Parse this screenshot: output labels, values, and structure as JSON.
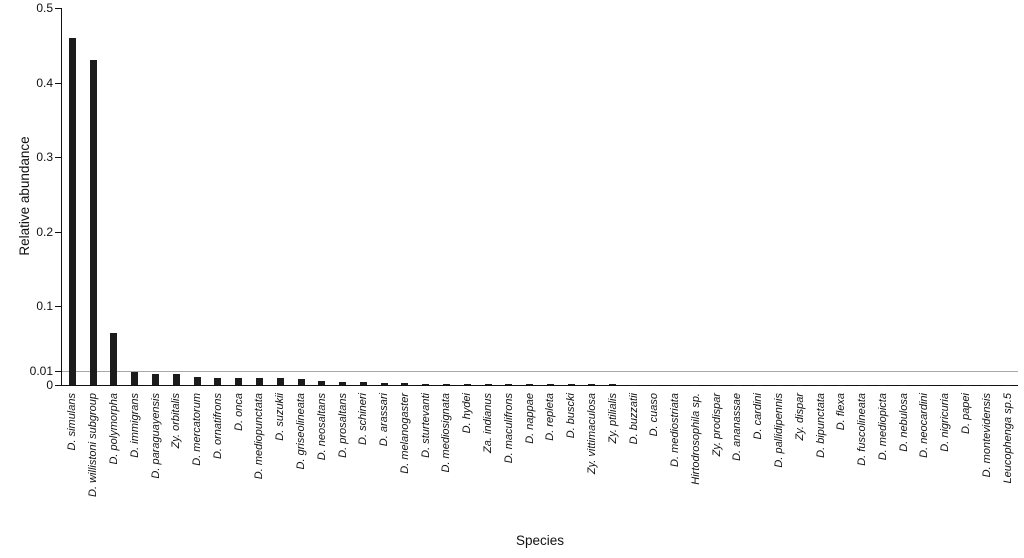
{
  "chart_data": {
    "type": "bar",
    "title": "",
    "xlabel": "Species",
    "ylabel": "Relative abundance",
    "bar_color": "#1c1c1c",
    "axis_color": "#111111",
    "gridline_color": "#a8a8a8",
    "ylim": [
      0,
      0.5
    ],
    "y_ticks": [
      0,
      0.01,
      0.1,
      0.2,
      0.3,
      0.4,
      0.5
    ],
    "y_tick_labels": [
      "0",
      "0.01",
      "0.1",
      "0.2",
      "0.3",
      "0.4",
      "0.5"
    ],
    "y_scale_note": "axis compressed below 0.1 with emphasized 0-0.01 region and gridline at 0.01",
    "legend": "none",
    "grid": "single horizontal gridline at 0.01",
    "categories": [
      "D. simulans",
      "D. willistoni subgroup",
      "D. polymorpha",
      "D. immigrans",
      "D. paraguayensis",
      "Zy. orbitalis",
      "D. mercatorum",
      "D. ornatifrons",
      "D. onca",
      "D. mediopunctata",
      "D. suzukii",
      "D. griseolineata",
      "D. neosaltans",
      "D. prosaltans",
      "D. schineri",
      "D. arassari",
      "D. melanogaster",
      "D. sturtevanti",
      "D. mediosignata",
      "D. hydei",
      "Za. indianus",
      "D. maculifrons",
      "D. nappae",
      "D. repleta",
      "D. buscki",
      "Zy. vittimaculosa",
      "Zy. ptilialis",
      "D. buzzatii",
      "D. cuaso",
      "D. mediostriata",
      "Hirtodrosophila sp.",
      "Zy. prodispar",
      "D. ananassae",
      "D. cardini",
      "D. pallidipennis",
      "Zy. dispar",
      "D. bipunctata",
      "D. flexa",
      "D. fuscolineata",
      "D. mediopicta",
      "D. nebulosa",
      "D. neocardini",
      "D. nigricuria",
      "D. papei",
      "D. montevidensis",
      "Leucophenga sp.5"
    ],
    "values": [
      0.46,
      0.43,
      0.062,
      0.009,
      0.008,
      0.008,
      0.006,
      0.005,
      0.005,
      0.005,
      0.005,
      0.004,
      0.003,
      0.002,
      0.002,
      0.0015,
      0.0012,
      0.001,
      0.001,
      0.0008,
      0.0007,
      0.0006,
      0.0006,
      0.0005,
      0.0005,
      0.0004,
      0.0004,
      0.0003,
      0.0003,
      0.0003,
      0.0002,
      0.0002,
      0.0002,
      0.0002,
      0.0002,
      0.0001,
      0.0001,
      0.0001,
      0.0001,
      0.0001,
      0.0001,
      0.0001,
      0.0001,
      0.0001,
      0.0001,
      0.0001
    ]
  }
}
